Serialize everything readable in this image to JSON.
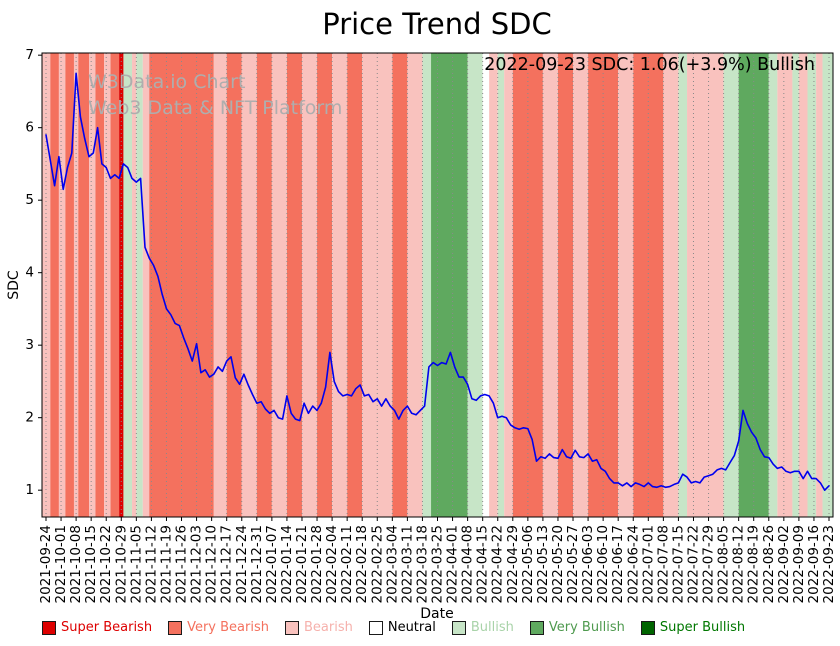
{
  "annotation": "2022-09-23 SDC: 1.06(+3.9%) Bullish",
  "watermark": {
    "line1": "W3Data.io Chart",
    "line2": "Web3 Data & NFT Platform"
  },
  "chart_data": {
    "type": "line",
    "title": "Price Trend SDC",
    "xlabel": "Date",
    "ylabel": "SDC",
    "ylim": [
      0.63,
      7.03
    ],
    "yticks": [
      1,
      2,
      3,
      4,
      5,
      6,
      7
    ],
    "x_tick_interval_days": 7,
    "x_tick_labels": [
      "2021-09-24",
      "2021-10-01",
      "2021-10-08",
      "2021-10-15",
      "2021-10-22",
      "2021-10-29",
      "2021-11-05",
      "2021-11-12",
      "2021-11-19",
      "2021-11-26",
      "2021-12-03",
      "2021-12-10",
      "2021-12-17",
      "2021-12-24",
      "2021-12-31",
      "2022-01-07",
      "2022-01-14",
      "2022-01-21",
      "2022-01-28",
      "2022-02-04",
      "2022-02-11",
      "2022-02-18",
      "2022-02-25",
      "2022-03-04",
      "2022-03-11",
      "2022-03-18",
      "2022-03-25",
      "2022-04-01",
      "2022-04-08",
      "2022-04-15",
      "2022-04-22",
      "2022-04-29",
      "2022-05-06",
      "2022-05-13",
      "2022-05-20",
      "2022-05-27",
      "2022-06-03",
      "2022-06-10",
      "2022-06-17",
      "2022-06-24",
      "2022-07-01",
      "2022-07-08",
      "2022-07-15",
      "2022-07-22",
      "2022-07-29",
      "2022-08-05",
      "2022-08-12",
      "2022-08-19",
      "2022-08-26",
      "2022-09-02",
      "2022-09-09",
      "2022-09-16",
      "2022-09-23"
    ],
    "grid": {
      "vertical": true,
      "style": "dotted",
      "color": "#8a8a8a"
    },
    "series": [
      {
        "name": "SDC price",
        "color": "#0000ee",
        "day_step": 2,
        "values": [
          5.9,
          5.55,
          5.2,
          5.6,
          5.15,
          5.45,
          5.65,
          6.75,
          6.15,
          5.85,
          5.6,
          5.65,
          6.0,
          5.5,
          5.45,
          5.3,
          5.35,
          5.3,
          5.5,
          5.45,
          5.3,
          5.25,
          5.3,
          4.35,
          4.2,
          4.1,
          3.95,
          3.7,
          3.5,
          3.42,
          3.3,
          3.27,
          3.1,
          2.95,
          2.78,
          3.02,
          2.62,
          2.66,
          2.56,
          2.6,
          2.7,
          2.64,
          2.78,
          2.84,
          2.55,
          2.46,
          2.6,
          2.45,
          2.32,
          2.2,
          2.22,
          2.12,
          2.06,
          2.1,
          2.0,
          1.98,
          2.3,
          2.06,
          1.98,
          1.96,
          2.2,
          2.06,
          2.16,
          2.1,
          2.2,
          2.42,
          2.9,
          2.5,
          2.36,
          2.3,
          2.32,
          2.3,
          2.4,
          2.45,
          2.3,
          2.32,
          2.22,
          2.26,
          2.16,
          2.26,
          2.16,
          2.1,
          1.98,
          2.1,
          2.16,
          2.06,
          2.04,
          2.1,
          2.16,
          2.7,
          2.76,
          2.72,
          2.76,
          2.74,
          2.9,
          2.7,
          2.56,
          2.56,
          2.46,
          2.26,
          2.24,
          2.3,
          2.32,
          2.3,
          2.2,
          2.0,
          2.02,
          2.0,
          1.9,
          1.86,
          1.84,
          1.86,
          1.85,
          1.7,
          1.4,
          1.46,
          1.44,
          1.5,
          1.45,
          1.44,
          1.56,
          1.46,
          1.44,
          1.55,
          1.46,
          1.45,
          1.5,
          1.4,
          1.42,
          1.3,
          1.26,
          1.16,
          1.1,
          1.1,
          1.06,
          1.1,
          1.05,
          1.1,
          1.08,
          1.05,
          1.1,
          1.05,
          1.04,
          1.06,
          1.04,
          1.05,
          1.08,
          1.1,
          1.22,
          1.18,
          1.1,
          1.12,
          1.1,
          1.18,
          1.2,
          1.22,
          1.28,
          1.3,
          1.28,
          1.38,
          1.48,
          1.68,
          2.1,
          1.92,
          1.8,
          1.72,
          1.56,
          1.46,
          1.45,
          1.36,
          1.3,
          1.32,
          1.26,
          1.24,
          1.26,
          1.26,
          1.16,
          1.26,
          1.16,
          1.16,
          1.1,
          1.0,
          1.06
        ]
      }
    ],
    "sentiment_colors": {
      "super_bearish": "#dd0000",
      "very_bearish": "#f4715e",
      "bearish": "#f9c2be",
      "neutral": "#ffffff",
      "bullish": "#c7e5c7",
      "very_bullish": "#5fa95f",
      "super_bullish": "#006400"
    },
    "sentiment_bands": [
      [
        0,
        2,
        "bearish"
      ],
      [
        2,
        6,
        "very_bearish"
      ],
      [
        6,
        9,
        "bearish"
      ],
      [
        9,
        13,
        "very_bearish"
      ],
      [
        13,
        15,
        "bearish"
      ],
      [
        15,
        20,
        "very_bearish"
      ],
      [
        20,
        23,
        "bearish"
      ],
      [
        23,
        27,
        "very_bearish"
      ],
      [
        27,
        30,
        "bearish"
      ],
      [
        30,
        34,
        "very_bearish"
      ],
      [
        34,
        36,
        "super_bearish"
      ],
      [
        36,
        40,
        "bullish"
      ],
      [
        40,
        42,
        "bearish"
      ],
      [
        42,
        45,
        "bullish"
      ],
      [
        45,
        48,
        "bearish"
      ],
      [
        48,
        78,
        "very_bearish"
      ],
      [
        78,
        84,
        "bearish"
      ],
      [
        84,
        91,
        "very_bearish"
      ],
      [
        91,
        98,
        "bearish"
      ],
      [
        98,
        105,
        "very_bearish"
      ],
      [
        105,
        112,
        "bearish"
      ],
      [
        112,
        119,
        "very_bearish"
      ],
      [
        119,
        126,
        "bearish"
      ],
      [
        126,
        133,
        "very_bearish"
      ],
      [
        133,
        140,
        "bearish"
      ],
      [
        140,
        147,
        "very_bearish"
      ],
      [
        147,
        161,
        "bearish"
      ],
      [
        161,
        168,
        "very_bearish"
      ],
      [
        168,
        175,
        "bearish"
      ],
      [
        175,
        179,
        "bullish"
      ],
      [
        179,
        196,
        "very_bullish"
      ],
      [
        196,
        203,
        "bullish"
      ],
      [
        203,
        206,
        "neutral"
      ],
      [
        206,
        210,
        "bearish"
      ],
      [
        210,
        213,
        "bullish"
      ],
      [
        213,
        217,
        "bearish"
      ],
      [
        217,
        231,
        "very_bearish"
      ],
      [
        231,
        238,
        "bearish"
      ],
      [
        238,
        245,
        "very_bearish"
      ],
      [
        245,
        252,
        "bearish"
      ],
      [
        252,
        266,
        "very_bearish"
      ],
      [
        266,
        273,
        "bearish"
      ],
      [
        273,
        287,
        "very_bearish"
      ],
      [
        287,
        294,
        "bearish"
      ],
      [
        294,
        298,
        "bullish"
      ],
      [
        298,
        315,
        "bearish"
      ],
      [
        315,
        322,
        "bullish"
      ],
      [
        322,
        336,
        "very_bullish"
      ],
      [
        336,
        340,
        "bullish"
      ],
      [
        340,
        347,
        "bearish"
      ],
      [
        347,
        350,
        "bullish"
      ],
      [
        350,
        354,
        "bearish"
      ],
      [
        354,
        358,
        "bullish"
      ],
      [
        358,
        361,
        "bearish"
      ],
      [
        361,
        365,
        "bullish"
      ]
    ]
  },
  "legend": {
    "items": [
      {
        "level": "super_bearish",
        "label": "Super Bearish",
        "color": "#dd0000",
        "text_color": "#dd0000"
      },
      {
        "level": "very_bearish",
        "label": "Very Bearish",
        "color": "#f4715e",
        "text_color": "#f4715e"
      },
      {
        "level": "bearish",
        "label": "Bearish",
        "color": "#f9c2be",
        "text_color": "#f6b1ac"
      },
      {
        "level": "neutral",
        "label": "Neutral",
        "color": "#ffffff",
        "text_color": "#000000"
      },
      {
        "level": "bullish",
        "label": "Bullish",
        "color": "#c7e5c7",
        "text_color": "#a9d3a9"
      },
      {
        "level": "very_bullish",
        "label": "Very Bullish",
        "color": "#5fa95f",
        "text_color": "#4f9a4f"
      },
      {
        "level": "super_bullish",
        "label": "Super Bullish",
        "color": "#006400",
        "text_color": "#007700"
      }
    ]
  }
}
